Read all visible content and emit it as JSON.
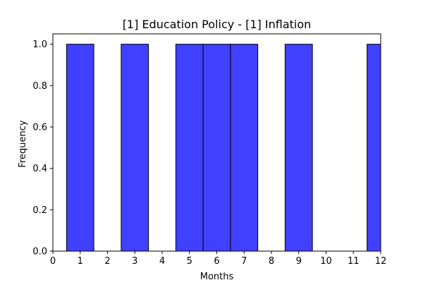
{
  "chart_data": {
    "type": "bar",
    "title": "[1] Education Policy - [1] Inflation",
    "xlabel": "Months",
    "ylabel": "Frequency",
    "xlim": [
      0,
      12
    ],
    "ylim": [
      0,
      1.05
    ],
    "x_ticks": [
      0,
      1,
      2,
      3,
      4,
      5,
      6,
      7,
      8,
      9,
      10,
      11,
      12
    ],
    "y_ticks": [
      0.0,
      0.2,
      0.4,
      0.6,
      0.8,
      1.0
    ],
    "y_tick_labels": [
      "0.0",
      "0.2",
      "0.4",
      "0.6",
      "0.8",
      "1.0"
    ],
    "bin_width": 1,
    "categories": [
      1,
      3,
      5,
      6,
      7,
      9,
      12
    ],
    "values": [
      1,
      1,
      1,
      1,
      1,
      1,
      1
    ],
    "grid": false,
    "bar_color": "#4040ff",
    "bar_edge_color": "#000000"
  }
}
